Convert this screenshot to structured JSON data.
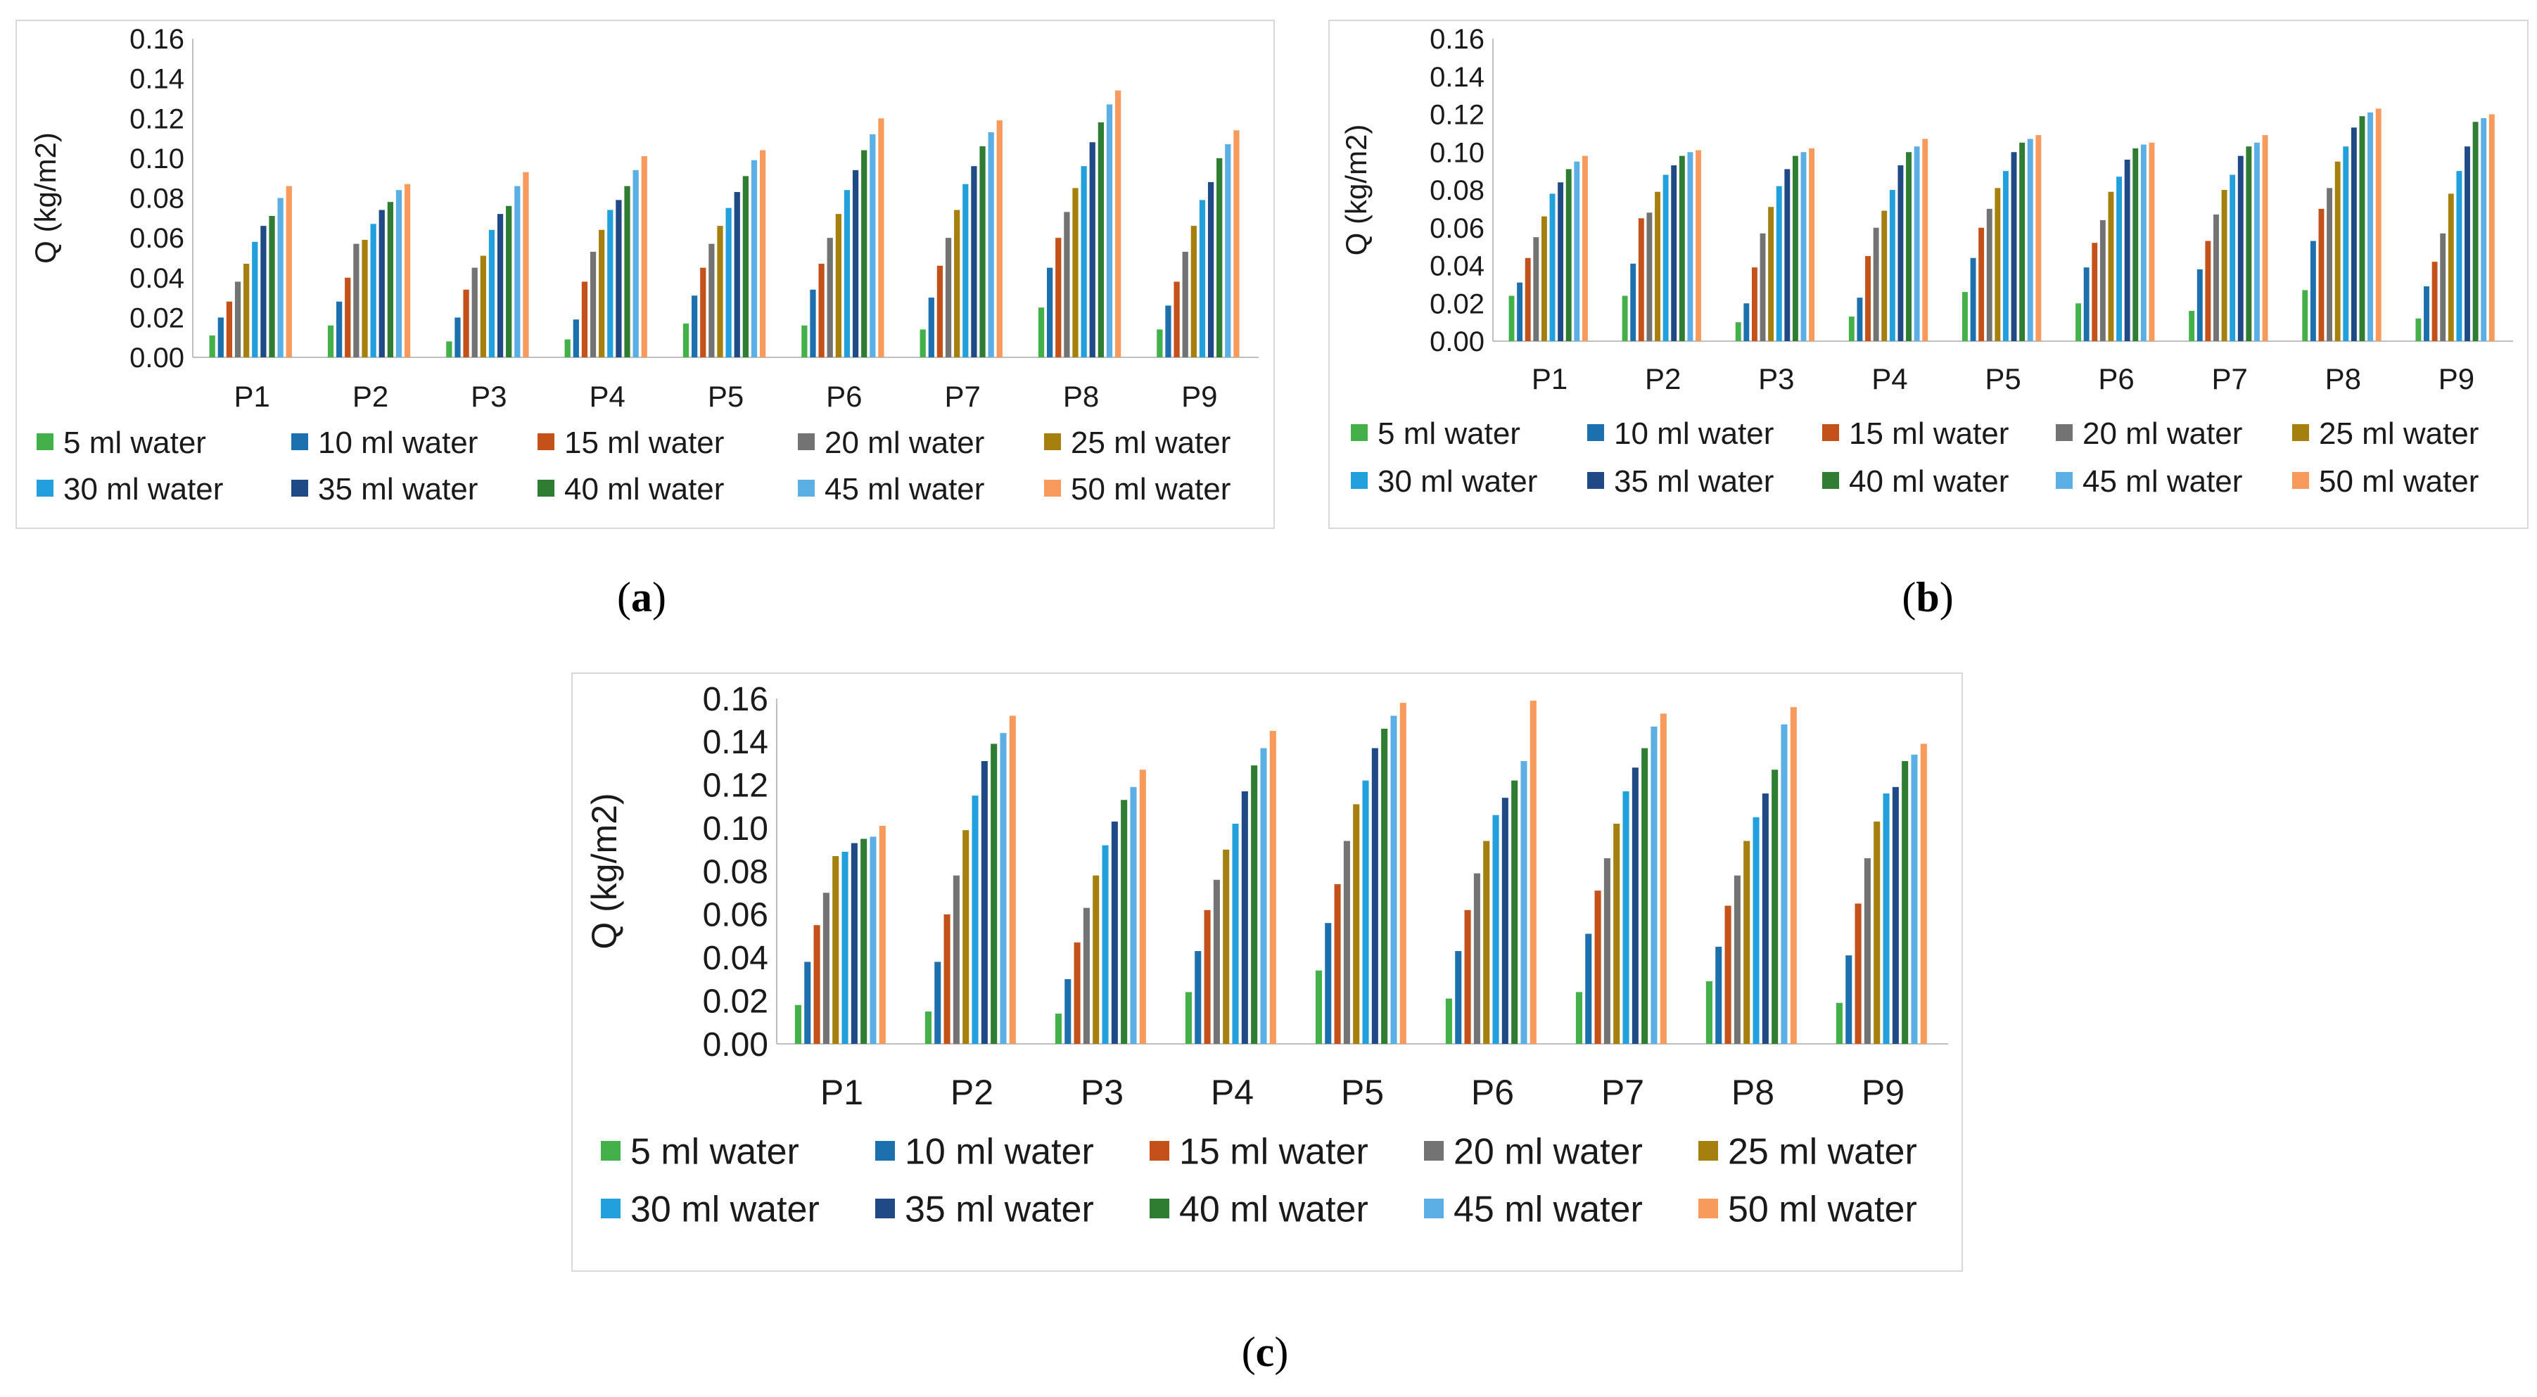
{
  "captions": [
    "a",
    "b",
    "c"
  ],
  "legend_labels": [
    "5 ml water",
    "10 ml water",
    "15 ml water",
    "20 ml water",
    "25 ml water",
    "30 ml water",
    "35 ml water",
    "40 ml water",
    "45 ml water",
    "50 ml water"
  ],
  "series_colors": [
    "#44b049",
    "#1d70ae",
    "#c4501a",
    "#737373",
    "#a6800f",
    "#22a0dd",
    "#1f4a86",
    "#2e7d32",
    "#5bafe5",
    "#f79a5b"
  ],
  "chart_data": [
    {
      "type": "bar",
      "panel": "a",
      "categories": [
        "P1",
        "P2",
        "P3",
        "P4",
        "P5",
        "P6",
        "P7",
        "P8",
        "P9"
      ],
      "ylabel": "Q (kg/m2)",
      "ylim": [
        0,
        0.16
      ],
      "yticks": [
        "0.00",
        "0.02",
        "0.04",
        "0.06",
        "0.08",
        "0.10",
        "0.12",
        "0.14",
        "0.16"
      ],
      "series": [
        {
          "name": "5 ml water",
          "values": [
            0.011,
            0.016,
            0.008,
            0.009,
            0.017,
            0.016,
            0.014,
            0.025,
            0.014
          ]
        },
        {
          "name": "10 ml water",
          "values": [
            0.02,
            0.028,
            0.02,
            0.019,
            0.031,
            0.034,
            0.03,
            0.045,
            0.026
          ]
        },
        {
          "name": "15 ml water",
          "values": [
            0.028,
            0.04,
            0.034,
            0.038,
            0.045,
            0.047,
            0.046,
            0.06,
            0.038
          ]
        },
        {
          "name": "20 ml water",
          "values": [
            0.038,
            0.057,
            0.045,
            0.053,
            0.057,
            0.06,
            0.06,
            0.073,
            0.053
          ]
        },
        {
          "name": "25 ml water",
          "values": [
            0.047,
            0.059,
            0.051,
            0.064,
            0.066,
            0.072,
            0.074,
            0.085,
            0.066
          ]
        },
        {
          "name": "30 ml water",
          "values": [
            0.058,
            0.067,
            0.064,
            0.074,
            0.075,
            0.084,
            0.087,
            0.096,
            0.079
          ]
        },
        {
          "name": "35 ml water",
          "values": [
            0.066,
            0.074,
            0.072,
            0.079,
            0.083,
            0.094,
            0.096,
            0.108,
            0.088
          ]
        },
        {
          "name": "40 ml water",
          "values": [
            0.071,
            0.078,
            0.076,
            0.086,
            0.091,
            0.104,
            0.106,
            0.118,
            0.1
          ]
        },
        {
          "name": "45 ml water",
          "values": [
            0.08,
            0.084,
            0.086,
            0.094,
            0.099,
            0.112,
            0.113,
            0.127,
            0.107
          ]
        },
        {
          "name": "50 ml water",
          "values": [
            0.086,
            0.087,
            0.093,
            0.101,
            0.104,
            0.12,
            0.119,
            0.134,
            0.114
          ]
        }
      ]
    },
    {
      "type": "bar",
      "panel": "b",
      "categories": [
        "P1",
        "P2",
        "P3",
        "P4",
        "P5",
        "P6",
        "P7",
        "P8",
        "P9"
      ],
      "ylabel": "Q (kg/m2)",
      "ylim": [
        0,
        0.16
      ],
      "yticks": [
        "0.00",
        "0.02",
        "0.04",
        "0.06",
        "0.08",
        "0.10",
        "0.12",
        "0.14",
        "0.16"
      ],
      "series": [
        {
          "name": "5 ml water",
          "values": [
            0.024,
            0.024,
            0.01,
            0.013,
            0.026,
            0.02,
            0.016,
            0.027,
            0.012
          ]
        },
        {
          "name": "10 ml water",
          "values": [
            0.031,
            0.041,
            0.02,
            0.023,
            0.044,
            0.039,
            0.038,
            0.053,
            0.029
          ]
        },
        {
          "name": "15 ml water",
          "values": [
            0.044,
            0.065,
            0.039,
            0.045,
            0.06,
            0.052,
            0.053,
            0.07,
            0.042
          ]
        },
        {
          "name": "20 ml water",
          "values": [
            0.055,
            0.068,
            0.057,
            0.06,
            0.07,
            0.064,
            0.067,
            0.081,
            0.057
          ]
        },
        {
          "name": "25 ml water",
          "values": [
            0.066,
            0.079,
            0.071,
            0.069,
            0.081,
            0.079,
            0.08,
            0.095,
            0.078
          ]
        },
        {
          "name": "30 ml water",
          "values": [
            0.078,
            0.088,
            0.082,
            0.08,
            0.09,
            0.087,
            0.088,
            0.103,
            0.09
          ]
        },
        {
          "name": "35 ml water",
          "values": [
            0.084,
            0.093,
            0.091,
            0.093,
            0.1,
            0.096,
            0.098,
            0.113,
            0.103
          ]
        },
        {
          "name": "40 ml water",
          "values": [
            0.091,
            0.098,
            0.098,
            0.1,
            0.105,
            0.102,
            0.103,
            0.119,
            0.116
          ]
        },
        {
          "name": "45 ml water",
          "values": [
            0.095,
            0.1,
            0.1,
            0.103,
            0.107,
            0.104,
            0.105,
            0.121,
            0.118
          ]
        },
        {
          "name": "50 ml water",
          "values": [
            0.098,
            0.101,
            0.102,
            0.107,
            0.109,
            0.105,
            0.109,
            0.123,
            0.12
          ]
        }
      ]
    },
    {
      "type": "bar",
      "panel": "c",
      "categories": [
        "P1",
        "P2",
        "P3",
        "P4",
        "P5",
        "P6",
        "P7",
        "P8",
        "P9"
      ],
      "ylabel": "Q (kg/m2)",
      "ylim": [
        0,
        0.16
      ],
      "yticks": [
        "0.00",
        "0.02",
        "0.04",
        "0.06",
        "0.08",
        "0.10",
        "0.12",
        "0.14",
        "0.16"
      ],
      "series": [
        {
          "name": "5 ml water",
          "values": [
            0.018,
            0.015,
            0.014,
            0.024,
            0.034,
            0.021,
            0.024,
            0.029,
            0.019
          ]
        },
        {
          "name": "10 ml water",
          "values": [
            0.038,
            0.038,
            0.03,
            0.043,
            0.056,
            0.043,
            0.051,
            0.045,
            0.041
          ]
        },
        {
          "name": "15 ml water",
          "values": [
            0.055,
            0.06,
            0.047,
            0.062,
            0.074,
            0.062,
            0.071,
            0.064,
            0.065
          ]
        },
        {
          "name": "20 ml water",
          "values": [
            0.07,
            0.078,
            0.063,
            0.076,
            0.094,
            0.079,
            0.086,
            0.078,
            0.086
          ]
        },
        {
          "name": "25 ml water",
          "values": [
            0.087,
            0.099,
            0.078,
            0.09,
            0.111,
            0.094,
            0.102,
            0.094,
            0.103
          ]
        },
        {
          "name": "30 ml water",
          "values": [
            0.089,
            0.115,
            0.092,
            0.102,
            0.122,
            0.106,
            0.117,
            0.105,
            0.116
          ]
        },
        {
          "name": "35 ml water",
          "values": [
            0.093,
            0.131,
            0.103,
            0.117,
            0.137,
            0.114,
            0.128,
            0.116,
            0.119
          ]
        },
        {
          "name": "40 ml water",
          "values": [
            0.095,
            0.139,
            0.113,
            0.129,
            0.146,
            0.122,
            0.137,
            0.127,
            0.131
          ]
        },
        {
          "name": "45 ml water",
          "values": [
            0.096,
            0.144,
            0.119,
            0.137,
            0.152,
            0.131,
            0.147,
            0.148,
            0.134
          ]
        },
        {
          "name": "50 ml water",
          "values": [
            0.101,
            0.152,
            0.127,
            0.145,
            0.158,
            0.159,
            0.153,
            0.156,
            0.139
          ]
        }
      ]
    }
  ]
}
